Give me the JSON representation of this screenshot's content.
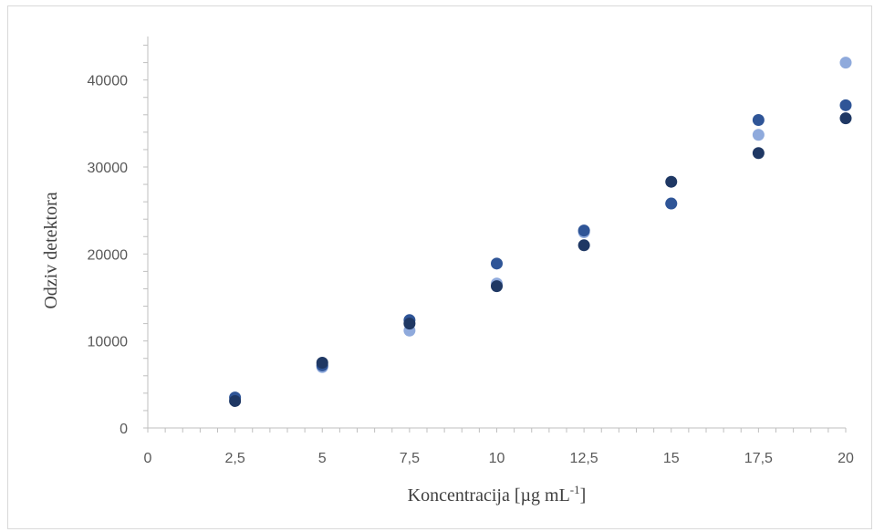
{
  "chart_data": {
    "type": "scatter",
    "title": "",
    "xlabel": "Koncentracija [µg mL",
    "xlabel_superscript": "-1",
    "xlabel_suffix": "]",
    "ylabel": "Odziv detektora",
    "xlim": [
      0,
      20
    ],
    "ylim": [
      0,
      45000
    ],
    "grid": false,
    "x_ticks": [
      0,
      2.5,
      5,
      7.5,
      10,
      12.5,
      15,
      17.5,
      20
    ],
    "x_tick_labels": [
      "0",
      "2,5",
      "5",
      "7,5",
      "10",
      "12,5",
      "15",
      "17,5",
      "20"
    ],
    "y_ticks": [
      0,
      10000,
      20000,
      30000,
      40000
    ],
    "y_tick_labels": [
      "0",
      "10000",
      "20000",
      "30000",
      "40000"
    ],
    "series": [
      {
        "color": "#8faadc",
        "points": [
          [
            2.5,
            3200
          ],
          [
            5,
            7000
          ],
          [
            7.5,
            11200
          ],
          [
            10,
            16600
          ],
          [
            12.5,
            22500
          ],
          [
            15,
            25800
          ],
          [
            17.5,
            33700
          ],
          [
            20,
            42000
          ]
        ]
      },
      {
        "color": "#2f5597",
        "points": [
          [
            2.5,
            3500
          ],
          [
            5,
            7200
          ],
          [
            7.5,
            12400
          ],
          [
            10,
            18900
          ],
          [
            12.5,
            22700
          ],
          [
            15,
            25800
          ],
          [
            17.5,
            35400
          ],
          [
            20,
            37100
          ]
        ]
      },
      {
        "color": "#1f3864",
        "points": [
          [
            2.5,
            3100
          ],
          [
            5,
            7500
          ],
          [
            7.5,
            12000
          ],
          [
            10,
            16300
          ],
          [
            12.5,
            21000
          ],
          [
            15,
            28300
          ],
          [
            17.5,
            31600
          ],
          [
            20,
            35600
          ]
        ]
      }
    ]
  }
}
